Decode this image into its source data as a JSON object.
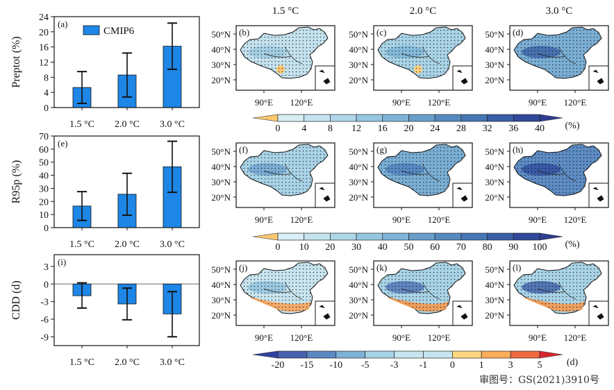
{
  "column_headers": [
    "1.5 °C",
    "2.0 °C",
    "3.0 °C"
  ],
  "bar_color": "#1e86e6",
  "chart_data": [
    {
      "type": "bar",
      "panel": "(a)",
      "ylabel": "Preptot (%)",
      "legend": "CMIP6",
      "legend_position": "top",
      "categories": [
        "1.5 °C",
        "2.0 °C",
        "3.0 °C"
      ],
      "values": [
        5.3,
        8.6,
        16.2
      ],
      "error_low": [
        1.1,
        2.8,
        10.1
      ],
      "error_high": [
        9.5,
        14.4,
        22.3
      ],
      "ylim": [
        0,
        24
      ],
      "yticks": [
        "0",
        "4",
        "8",
        "12",
        "16",
        "20",
        "24"
      ]
    },
    {
      "type": "bar",
      "panel": "(e)",
      "ylabel": "R95p (%)",
      "categories": [
        "1.5 °C",
        "2.0 °C",
        "3.0 °C"
      ],
      "values": [
        16.5,
        25.5,
        46.5
      ],
      "error_low": [
        5.5,
        9.5,
        27
      ],
      "error_high": [
        27.5,
        41.5,
        66
      ],
      "ylim": [
        0,
        70
      ],
      "yticks": [
        "0",
        "10",
        "20",
        "30",
        "40",
        "50",
        "60",
        "70"
      ]
    },
    {
      "type": "bar",
      "panel": "(i)",
      "ylabel": "CDD (d)",
      "categories": [
        "1.5 °C",
        "2.0 °C",
        "3.0 °C"
      ],
      "values": [
        -2.0,
        -3.4,
        -5.1
      ],
      "error_low": [
        -4.1,
        -6.1,
        -9.0
      ],
      "error_high": [
        0.2,
        -0.7,
        -1.3
      ],
      "ylim": [
        -10.5,
        5
      ],
      "yticks": [
        "-9",
        "-6",
        "-3",
        "0",
        "3"
      ],
      "zero_line": true
    }
  ],
  "maps": {
    "lat_labels": [
      "50°N",
      "40°N",
      "30°N",
      "20°N"
    ],
    "lon_labels": [
      "90°E",
      "120°E"
    ],
    "rows": [
      {
        "panels": [
          {
            "label": "(b)",
            "fill": "#c4e2ee",
            "dark": "#9ccbe0",
            "warm": "#fcc870"
          },
          {
            "label": "(c)",
            "fill": "#a9d3e6",
            "dark": "#7bb3d6",
            "warm": "#fcd080"
          },
          {
            "label": "(d)",
            "fill": "#7aaed4",
            "dark": "#3c61a8",
            "warm": null
          }
        ]
      },
      {
        "panels": [
          {
            "label": "(f)",
            "fill": "#a9d3e6",
            "dark": "#6ea3cf",
            "warm": null
          },
          {
            "label": "(g)",
            "fill": "#7aaed4",
            "dark": "#4d7fbd",
            "warm": null
          },
          {
            "label": "(h)",
            "fill": "#5d8cc5",
            "dark": "#2f4c9c",
            "warm": null
          }
        ]
      },
      {
        "panels": [
          {
            "label": "(j)",
            "fill": "#c7e4ef",
            "dark": "#8ec1dd",
            "warm": "#f9a45a"
          },
          {
            "label": "(k)",
            "fill": "#a9d3e6",
            "dark": "#4d72b6",
            "warm": "#f59a50"
          },
          {
            "label": "(l)",
            "fill": "#a9d3e6",
            "dark": "#3d5ea8",
            "warm": "#f59a50"
          }
        ]
      }
    ]
  },
  "colorbars": [
    {
      "ticks": [
        "0",
        "4",
        "8",
        "12",
        "16",
        "20",
        "24",
        "28",
        "32",
        "36",
        "40"
      ],
      "unit": "(%)",
      "low": "#fcc870",
      "colors": [
        "#d8eef4",
        "#c4e3ee",
        "#aed6e8",
        "#96c7e0",
        "#7fb4d7",
        "#689fcb",
        "#558abf",
        "#4676b4",
        "#3a5fa6",
        "#31499a"
      ],
      "high": "#2e3d90"
    },
    {
      "ticks": [
        "0",
        "10",
        "20",
        "30",
        "40",
        "50",
        "60",
        "70",
        "80",
        "90",
        "100"
      ],
      "unit": "(%)",
      "low": "#fcc870",
      "colors": [
        "#d8eef4",
        "#c4e3ee",
        "#aed6e8",
        "#96c7e0",
        "#7fb4d7",
        "#689fcb",
        "#558abf",
        "#4676b4",
        "#3a5fa6",
        "#31499a"
      ],
      "high": "#2e3d90"
    },
    {
      "ticks": [
        "-20",
        "-15",
        "-10",
        "-5",
        "-3",
        "-1",
        "0",
        "1",
        "3",
        "5"
      ],
      "unit": "(d)",
      "low": "#3140a0",
      "colors": [
        "#4561ad",
        "#5b88c0",
        "#7eb2d6",
        "#a6d2e6",
        "#c6e5ef",
        "#fdd77f",
        "#fbad5a",
        "#ef6840"
      ],
      "high": "#d7262c"
    }
  ],
  "approval_number": "审图号：GS(2021)3910号"
}
